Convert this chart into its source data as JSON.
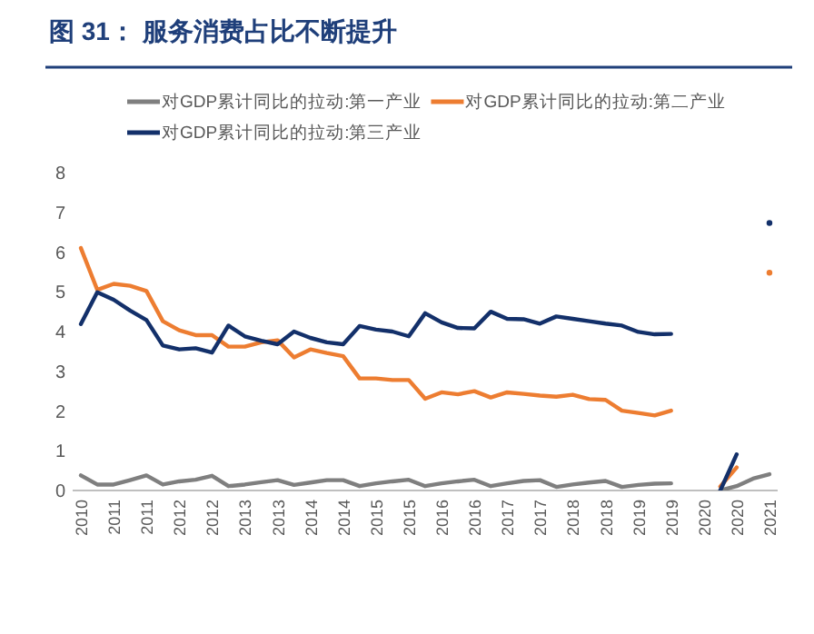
{
  "chart_data": {
    "type": "line",
    "title": "图 31： 服务消费占比不断提升",
    "categories": [
      "2010",
      null,
      "2011",
      null,
      "2011",
      null,
      "2012",
      null,
      "2012",
      null,
      "2013",
      null,
      "2013",
      null,
      "2014",
      null,
      "2014",
      null,
      "2015",
      null,
      "2015",
      null,
      "2016",
      null,
      "2016",
      null,
      "2017",
      null,
      "2017",
      null,
      "2018",
      null,
      "2018",
      null,
      "2019",
      null,
      "2019",
      null,
      "2020",
      null,
      "2020",
      null,
      "2021"
    ],
    "series": [
      {
        "name": "对GDP累计同比的拉动:第一产业",
        "color": "#7f7f7f",
        "values": [
          0.38,
          0.15,
          0.15,
          0.26,
          0.38,
          0.15,
          0.23,
          0.27,
          0.37,
          0.11,
          0.15,
          0.21,
          0.26,
          0.14,
          0.2,
          0.26,
          0.26,
          0.11,
          0.18,
          0.23,
          0.27,
          0.11,
          0.18,
          0.23,
          0.27,
          0.11,
          0.18,
          0.24,
          0.26,
          0.09,
          0.15,
          0.2,
          0.24,
          0.09,
          0.14,
          0.17,
          0.18,
          null,
          null,
          0.0,
          0.11,
          0.3,
          0.41
        ]
      },
      {
        "name": "对GDP累计同比的拉动:第二产业",
        "color": "#ed7d31",
        "values": [
          6.1,
          5.05,
          5.2,
          5.15,
          5.02,
          4.26,
          4.03,
          3.91,
          3.91,
          3.62,
          3.62,
          3.73,
          3.78,
          3.35,
          3.55,
          3.46,
          3.38,
          2.82,
          2.82,
          2.78,
          2.78,
          2.31,
          2.47,
          2.42,
          2.5,
          2.34,
          2.47,
          2.43,
          2.39,
          2.36,
          2.41,
          2.3,
          2.28,
          2.01,
          1.95,
          1.89,
          2.01,
          null,
          null,
          0.1,
          0.58,
          null,
          5.48
        ]
      },
      {
        "name": "对GDP累计同比的拉动:第三产业",
        "color": "#13306a",
        "values": [
          4.19,
          4.99,
          4.8,
          4.53,
          4.29,
          3.65,
          3.55,
          3.58,
          3.47,
          4.15,
          3.88,
          3.77,
          3.68,
          4.0,
          3.84,
          3.73,
          3.68,
          4.14,
          4.05,
          4.0,
          3.88,
          4.46,
          4.23,
          4.09,
          4.08,
          4.5,
          4.32,
          4.31,
          4.2,
          4.38,
          4.32,
          4.26,
          4.2,
          4.15,
          3.99,
          3.93,
          3.94,
          null,
          null,
          0.0,
          0.91,
          null,
          6.73
        ]
      }
    ],
    "ylim": [
      0,
      8
    ],
    "yticks": [
      0,
      1,
      2,
      3,
      4,
      5,
      6,
      7,
      8
    ],
    "legend": "top"
  }
}
